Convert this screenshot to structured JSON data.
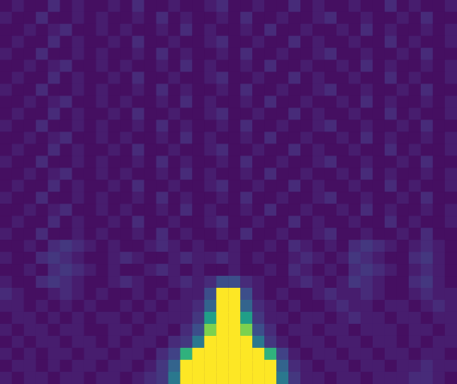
{
  "chart_data": {
    "type": "heatmap",
    "tick_labels": false,
    "color_range": [
      0,
      25
    ],
    "cells": [
      [
        1,
        2,
        1,
        1,
        3,
        1,
        2,
        1,
        1,
        2,
        1,
        3,
        1,
        1,
        2,
        1,
        1,
        2,
        3,
        1,
        1,
        2,
        1,
        1,
        3,
        1,
        2,
        1,
        1,
        2,
        1,
        1,
        3,
        1,
        2,
        1,
        1,
        2
      ],
      [
        2,
        1,
        1,
        3,
        1,
        1,
        2,
        1,
        2,
        1,
        1,
        2,
        1,
        3,
        1,
        2,
        1,
        1,
        2,
        1,
        3,
        1,
        1,
        2,
        1,
        1,
        2,
        3,
        1,
        1,
        2,
        1,
        1,
        2,
        1,
        3,
        1,
        1
      ],
      [
        1,
        1,
        2,
        1,
        2,
        3,
        1,
        1,
        2,
        1,
        2,
        1,
        1,
        2,
        1,
        3,
        1,
        2,
        1,
        1,
        2,
        1,
        3,
        1,
        1,
        2,
        1,
        1,
        2,
        1,
        3,
        1,
        2,
        1,
        1,
        2,
        1,
        2
      ],
      [
        1,
        2,
        1,
        1,
        3,
        1,
        2,
        1,
        1,
        2,
        1,
        3,
        1,
        1,
        2,
        1,
        1,
        2,
        3,
        1,
        1,
        2,
        1,
        1,
        3,
        1,
        2,
        1,
        1,
        2,
        1,
        1,
        3,
        1,
        2,
        1,
        1,
        2
      ],
      [
        2,
        1,
        1,
        3,
        1,
        1,
        2,
        1,
        2,
        1,
        1,
        2,
        1,
        3,
        1,
        2,
        1,
        1,
        2,
        1,
        3,
        1,
        1,
        2,
        1,
        1,
        2,
        3,
        1,
        1,
        2,
        1,
        1,
        2,
        1,
        3,
        1,
        1
      ],
      [
        1,
        1,
        2,
        1,
        2,
        3,
        1,
        1,
        2,
        1,
        2,
        1,
        1,
        2,
        1,
        3,
        1,
        2,
        1,
        1,
        2,
        1,
        3,
        1,
        1,
        2,
        1,
        1,
        2,
        1,
        3,
        1,
        2,
        1,
        1,
        2,
        1,
        2
      ],
      [
        1,
        2,
        1,
        1,
        3,
        1,
        2,
        1,
        1,
        2,
        1,
        3,
        1,
        1,
        2,
        1,
        1,
        2,
        3,
        1,
        1,
        2,
        1,
        1,
        3,
        1,
        2,
        1,
        1,
        2,
        1,
        1,
        3,
        1,
        2,
        1,
        1,
        2
      ],
      [
        2,
        1,
        1,
        3,
        1,
        1,
        2,
        1,
        2,
        1,
        1,
        2,
        1,
        3,
        1,
        2,
        1,
        1,
        2,
        1,
        3,
        1,
        1,
        2,
        1,
        1,
        2,
        3,
        1,
        1,
        2,
        1,
        1,
        2,
        1,
        3,
        1,
        1
      ],
      [
        1,
        1,
        2,
        1,
        2,
        3,
        1,
        1,
        2,
        1,
        2,
        1,
        1,
        2,
        1,
        3,
        1,
        2,
        1,
        1,
        2,
        1,
        3,
        1,
        1,
        2,
        1,
        1,
        2,
        1,
        3,
        1,
        2,
        1,
        1,
        2,
        1,
        2
      ],
      [
        1,
        2,
        1,
        1,
        3,
        1,
        2,
        1,
        1,
        2,
        1,
        3,
        1,
        1,
        2,
        1,
        1,
        2,
        3,
        1,
        1,
        2,
        1,
        1,
        3,
        1,
        2,
        1,
        1,
        2,
        1,
        1,
        3,
        1,
        2,
        1,
        1,
        2
      ],
      [
        2,
        1,
        1,
        3,
        1,
        1,
        2,
        1,
        2,
        1,
        1,
        2,
        1,
        3,
        1,
        2,
        1,
        1,
        2,
        1,
        3,
        1,
        1,
        2,
        1,
        1,
        2,
        3,
        1,
        1,
        2,
        1,
        1,
        2,
        1,
        3,
        1,
        1
      ],
      [
        1,
        1,
        2,
        1,
        2,
        3,
        1,
        1,
        2,
        1,
        2,
        1,
        1,
        2,
        1,
        3,
        1,
        2,
        1,
        1,
        2,
        1,
        3,
        1,
        1,
        2,
        1,
        1,
        2,
        1,
        3,
        1,
        2,
        1,
        1,
        2,
        1,
        2
      ],
      [
        1,
        2,
        1,
        1,
        3,
        1,
        2,
        1,
        1,
        2,
        1,
        3,
        1,
        1,
        2,
        1,
        1,
        2,
        3,
        1,
        1,
        2,
        1,
        1,
        3,
        1,
        2,
        1,
        1,
        2,
        1,
        1,
        3,
        1,
        2,
        1,
        1,
        2
      ],
      [
        2,
        1,
        1,
        3,
        1,
        1,
        2,
        1,
        2,
        1,
        1,
        2,
        1,
        3,
        1,
        2,
        1,
        1,
        2,
        1,
        3,
        1,
        1,
        2,
        1,
        1,
        2,
        3,
        1,
        1,
        2,
        1,
        1,
        2,
        1,
        3,
        1,
        1
      ],
      [
        1,
        1,
        2,
        1,
        2,
        3,
        1,
        1,
        2,
        1,
        2,
        1,
        1,
        2,
        1,
        3,
        1,
        2,
        1,
        1,
        2,
        1,
        3,
        1,
        1,
        2,
        1,
        1,
        2,
        1,
        3,
        1,
        2,
        1,
        1,
        2,
        1,
        2
      ],
      [
        1,
        2,
        1,
        1,
        3,
        1,
        2,
        1,
        1,
        2,
        1,
        3,
        1,
        1,
        2,
        1,
        1,
        2,
        3,
        1,
        1,
        2,
        1,
        1,
        3,
        1,
        2,
        1,
        1,
        2,
        1,
        1,
        3,
        1,
        2,
        1,
        1,
        2
      ],
      [
        2,
        1,
        1,
        3,
        1,
        1,
        2,
        1,
        2,
        1,
        1,
        2,
        1,
        3,
        1,
        2,
        1,
        1,
        2,
        1,
        3,
        1,
        1,
        2,
        1,
        1,
        2,
        3,
        1,
        1,
        2,
        1,
        1,
        2,
        1,
        3,
        1,
        1
      ],
      [
        1,
        1,
        2,
        1,
        2,
        3,
        1,
        1,
        2,
        1,
        2,
        1,
        1,
        2,
        1,
        3,
        1,
        2,
        1,
        1,
        2,
        1,
        3,
        1,
        1,
        2,
        1,
        1,
        2,
        1,
        3,
        1,
        2,
        1,
        1,
        2,
        1,
        2
      ],
      [
        1,
        2,
        1,
        1,
        3,
        1,
        2,
        1,
        1,
        2,
        1,
        3,
        1,
        1,
        2,
        1,
        1,
        2,
        3,
        1,
        1,
        2,
        1,
        1,
        3,
        1,
        2,
        1,
        1,
        2,
        1,
        1,
        3,
        1,
        2,
        1,
        1,
        2
      ],
      [
        2,
        1,
        1,
        3,
        1,
        1,
        2,
        1,
        2,
        1,
        1,
        2,
        1,
        3,
        1,
        2,
        1,
        1,
        2,
        1,
        3,
        1,
        1,
        2,
        1,
        1,
        2,
        3,
        1,
        1,
        2,
        1,
        1,
        2,
        1,
        3,
        1,
        1
      ],
      [
        1,
        1,
        2,
        1,
        3,
        4,
        3,
        2,
        1,
        2,
        1,
        1,
        2,
        3,
        2,
        1,
        2,
        1,
        1,
        2,
        1,
        1,
        2,
        1,
        3,
        2,
        1,
        2,
        1,
        3,
        4,
        3,
        2,
        1,
        2,
        3,
        2,
        1
      ],
      [
        2,
        1,
        1,
        3,
        4,
        3,
        2,
        1,
        1,
        2,
        3,
        2,
        1,
        1,
        2,
        3,
        2,
        2,
        3,
        2,
        1,
        2,
        1,
        1,
        2,
        3,
        2,
        1,
        2,
        4,
        3,
        2,
        1,
        1,
        3,
        4,
        2,
        1
      ],
      [
        1,
        1,
        2,
        1,
        3,
        4,
        3,
        2,
        1,
        2,
        1,
        1,
        2,
        3,
        2,
        1,
        2,
        1,
        1,
        2,
        1,
        1,
        2,
        1,
        3,
        2,
        1,
        2,
        1,
        3,
        4,
        3,
        2,
        1,
        2,
        3,
        2,
        1
      ],
      [
        2,
        1,
        1,
        3,
        4,
        3,
        2,
        1,
        1,
        2,
        3,
        2,
        1,
        1,
        2,
        3,
        2,
        3,
        6,
        6,
        3,
        2,
        1,
        1,
        2,
        3,
        2,
        1,
        2,
        4,
        3,
        2,
        1,
        1,
        3,
        4,
        2,
        1
      ],
      [
        3,
        2,
        1,
        1,
        2,
        3,
        2,
        1,
        2,
        1,
        1,
        2,
        1,
        2,
        1,
        2,
        2,
        6,
        25,
        25,
        6,
        2,
        1,
        2,
        1,
        1,
        2,
        3,
        2,
        2,
        3,
        2,
        1,
        1,
        2,
        3,
        2,
        2
      ],
      [
        2,
        2,
        1,
        2,
        1,
        2,
        1,
        2,
        1,
        1,
        2,
        1,
        2,
        1,
        2,
        2,
        3,
        8,
        25,
        25,
        8,
        3,
        2,
        1,
        2,
        1,
        1,
        2,
        3,
        2,
        2,
        1,
        2,
        2,
        1,
        2,
        3,
        2
      ],
      [
        1,
        2,
        2,
        1,
        2,
        1,
        2,
        1,
        2,
        2,
        1,
        2,
        1,
        2,
        2,
        2,
        4,
        14,
        25,
        25,
        14,
        4,
        2,
        2,
        1,
        2,
        2,
        1,
        2,
        3,
        2,
        2,
        1,
        2,
        2,
        1,
        2,
        2
      ],
      [
        2,
        1,
        2,
        2,
        1,
        2,
        2,
        1,
        1,
        2,
        2,
        1,
        2,
        2,
        1,
        3,
        6,
        20,
        25,
        25,
        20,
        6,
        3,
        1,
        2,
        2,
        1,
        2,
        2,
        1,
        2,
        2,
        2,
        1,
        2,
        2,
        1,
        2
      ],
      [
        1,
        2,
        1,
        2,
        2,
        1,
        2,
        2,
        1,
        2,
        1,
        2,
        2,
        1,
        3,
        4,
        10,
        25,
        25,
        25,
        25,
        10,
        4,
        2,
        1,
        2,
        2,
        1,
        2,
        2,
        1,
        2,
        2,
        1,
        2,
        1,
        2,
        2
      ],
      [
        2,
        1,
        2,
        1,
        2,
        2,
        1,
        2,
        2,
        1,
        2,
        2,
        1,
        3,
        5,
        16,
        25,
        25,
        25,
        25,
        25,
        25,
        16,
        5,
        2,
        1,
        2,
        2,
        1,
        2,
        2,
        1,
        2,
        2,
        1,
        2,
        2,
        1
      ],
      [
        1,
        2,
        2,
        1,
        2,
        1,
        2,
        2,
        1,
        2,
        2,
        1,
        2,
        4,
        8,
        25,
        25,
        25,
        25,
        25,
        25,
        25,
        25,
        8,
        3,
        2,
        1,
        2,
        2,
        1,
        2,
        2,
        1,
        2,
        2,
        3,
        2,
        2
      ],
      [
        2,
        1,
        2,
        2,
        1,
        2,
        2,
        1,
        2,
        2,
        1,
        2,
        3,
        4,
        10,
        25,
        25,
        25,
        25,
        25,
        25,
        25,
        25,
        10,
        4,
        2,
        2,
        1,
        2,
        2,
        1,
        2,
        2,
        2,
        3,
        3,
        2,
        1
      ]
    ]
  }
}
